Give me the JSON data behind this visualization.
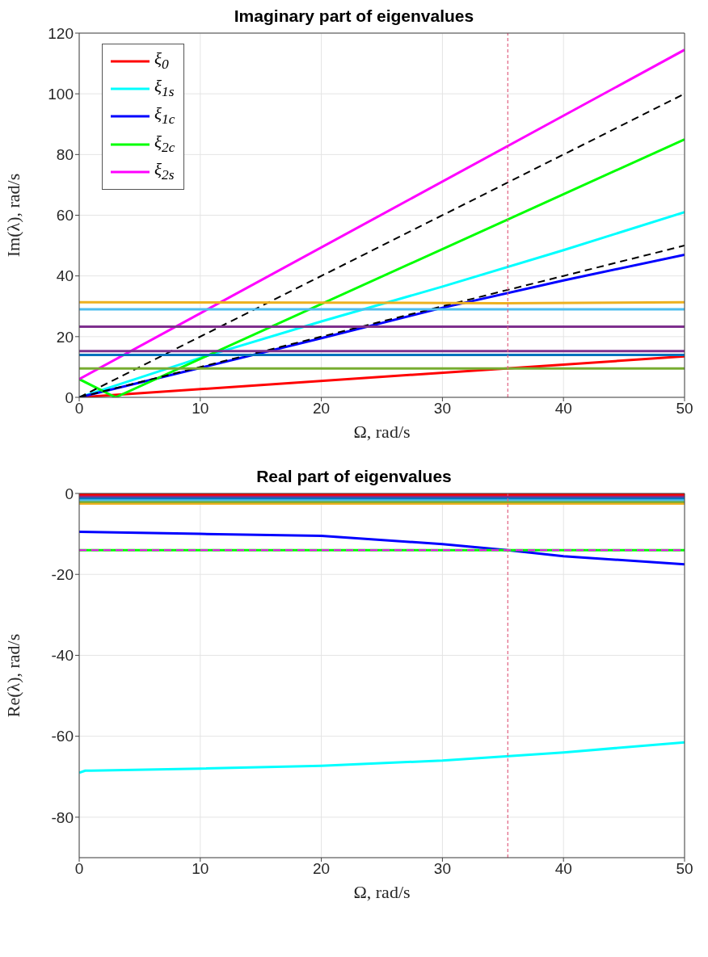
{
  "chart_data": [
    {
      "type": "line",
      "title": "Imaginary part of eigenvalues",
      "xlabel": "Ω, rad/s",
      "ylabel": "Im(λ), rad/s",
      "xlim": [
        0,
        50
      ],
      "xticks": [
        0,
        10,
        20,
        30,
        40,
        50
      ],
      "ylim": [
        0,
        120
      ],
      "yticks": [
        0,
        20,
        40,
        60,
        80,
        100,
        120
      ],
      "grid": true,
      "legend": "top left",
      "line_style": "solid",
      "ref_lines": [
        {
          "axis": "x",
          "value": 35.4,
          "color": "#e06080",
          "line_style": "dashed"
        }
      ],
      "series": [
        {
          "name": "ξ$_{0}$",
          "color": "#ff0000",
          "x": [
            0,
            50
          ],
          "values": [
            0,
            13.5
          ]
        },
        {
          "name": "ξ$_{1s}$",
          "color": "#00ffff",
          "x": [
            0,
            5,
            10,
            20,
            30,
            40,
            50
          ],
          "values": [
            0,
            6.5,
            13,
            25,
            36.5,
            48.5,
            61
          ]
        },
        {
          "name": "ξ$_{1c}$",
          "color": "#0000ff",
          "x": [
            0,
            10,
            20,
            30,
            40,
            50
          ],
          "values": [
            0,
            9.7,
            19.5,
            29.5,
            38.5,
            47
          ]
        },
        {
          "name": "ξ$_{2c}$",
          "color": "#00ff00",
          "x": [
            0,
            3,
            50
          ],
          "values": [
            6,
            0,
            85
          ]
        },
        {
          "name": "ξ$_{2s}$",
          "color": "#ff00ff",
          "x": [
            0,
            50
          ],
          "values": [
            6,
            114.5
          ]
        },
        {
          "color": "#000000",
          "line_style": "dashed",
          "x": [
            0,
            50
          ],
          "values": [
            0,
            100
          ]
        },
        {
          "color": "#000000",
          "line_style": "dashed",
          "x": [
            0,
            10,
            20,
            30,
            40,
            50
          ],
          "values": [
            0,
            10,
            20,
            30,
            40,
            50
          ]
        },
        {
          "color": "#edb120",
          "x": [
            0,
            20,
            35,
            50
          ],
          "values": [
            31.3,
            31.2,
            31,
            31.3
          ]
        },
        {
          "color": "#4dbeee",
          "x": [
            0,
            50
          ],
          "values": [
            29,
            29
          ]
        },
        {
          "color": "#7e2f8e",
          "x": [
            0,
            50
          ],
          "values": [
            23.3,
            23.3
          ]
        },
        {
          "color": "#7e2f8e",
          "x": [
            0,
            50
          ],
          "values": [
            15.2,
            15.2
          ]
        },
        {
          "color": "#0072bd",
          "x": [
            0,
            50
          ],
          "values": [
            14,
            14
          ]
        },
        {
          "color": "#77ac30",
          "x": [
            0,
            50
          ],
          "values": [
            9.5,
            9.5
          ]
        }
      ]
    },
    {
      "type": "line",
      "title": "Real part of eigenvalues",
      "xlabel": "Ω, rad/s",
      "ylabel": "Re(λ), rad/s",
      "xlim": [
        0,
        50
      ],
      "xticks": [
        0,
        10,
        20,
        30,
        40,
        50
      ],
      "ylim": [
        -90,
        0
      ],
      "yticks": [
        -80,
        -60,
        -40,
        -20,
        0
      ],
      "grid": true,
      "line_style": "solid",
      "ref_lines": [
        {
          "axis": "x",
          "value": 35.4,
          "color": "#e06080",
          "line_style": "dashed"
        }
      ],
      "series": [
        {
          "color": "#edb120",
          "x": [
            0,
            50
          ],
          "values": [
            -2.5,
            -2.5
          ]
        },
        {
          "color": "#77ac30",
          "x": [
            0,
            50
          ],
          "values": [
            -2.05,
            -2.05
          ]
        },
        {
          "color": "#4dbeee",
          "x": [
            0,
            50
          ],
          "values": [
            -1.6,
            -1.6
          ]
        },
        {
          "color": "#0072bd",
          "x": [
            0,
            50
          ],
          "values": [
            -1.15,
            -1.15
          ]
        },
        {
          "color": "#7e2f8e",
          "x": [
            0,
            50
          ],
          "values": [
            -0.7,
            -0.7
          ]
        },
        {
          "color": "#ff0000",
          "x": [
            0,
            50
          ],
          "values": [
            -0.25,
            -0.25
          ]
        },
        {
          "color": "#0000ff",
          "x": [
            0,
            10,
            20,
            30,
            35.4,
            40,
            50
          ],
          "values": [
            -9.5,
            -10,
            -10.5,
            -12.5,
            -14,
            -15.5,
            -17.5
          ]
        },
        {
          "color": "#00ff00",
          "x": [
            0,
            50
          ],
          "values": [
            -14,
            -14
          ]
        },
        {
          "color": "#ff00ff",
          "line_style": "dashed",
          "x": [
            0,
            50
          ],
          "values": [
            -14,
            -14
          ]
        },
        {
          "color": "#00ffff",
          "x": [
            0,
            0.5,
            1,
            10,
            20,
            30,
            40,
            50
          ],
          "values": [
            -69,
            -68.5,
            -68.5,
            -68,
            -67.3,
            -66,
            -64,
            -61.5
          ]
        }
      ]
    }
  ]
}
